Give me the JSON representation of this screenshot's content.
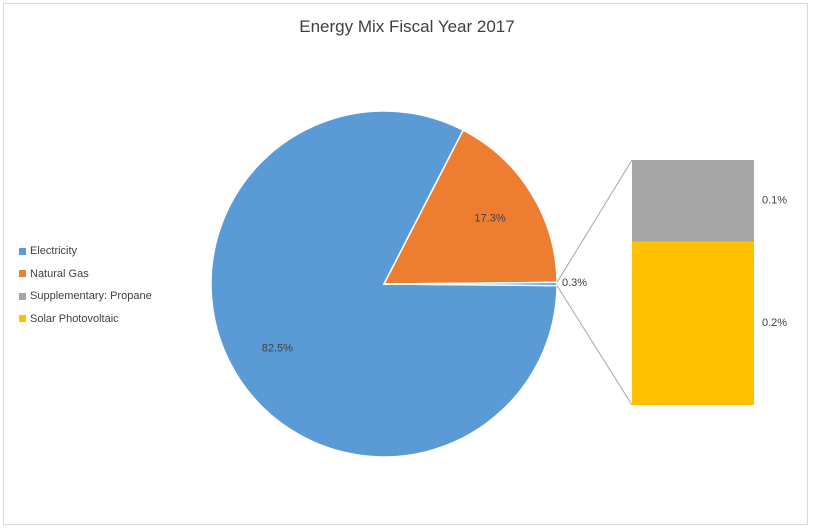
{
  "chart_data": {
    "type": "pie",
    "subtype": "bar-of-pie",
    "title": "Energy Mix Fiscal Year 2017",
    "slices": [
      {
        "name": "Electricity",
        "value": 82.5,
        "label": "82.5%",
        "color": "#5b9bd5"
      },
      {
        "name": "Natural Gas",
        "value": 17.3,
        "label": "17.3%",
        "color": "#ed7d31"
      },
      {
        "name": "Supplementary: Propane",
        "value": 0.1,
        "label": "0.1%",
        "color": "#a5a5a5"
      },
      {
        "name": "Solar Photovoltaic",
        "value": 0.2,
        "label": "0.2%",
        "color": "#ffc000"
      }
    ],
    "other_slice": {
      "value": 0.3,
      "label": "0.3%"
    },
    "legend_position": "left",
    "bar_stack_order": [
      "Supplementary: Propane",
      "Solar Photovoltaic"
    ]
  }
}
